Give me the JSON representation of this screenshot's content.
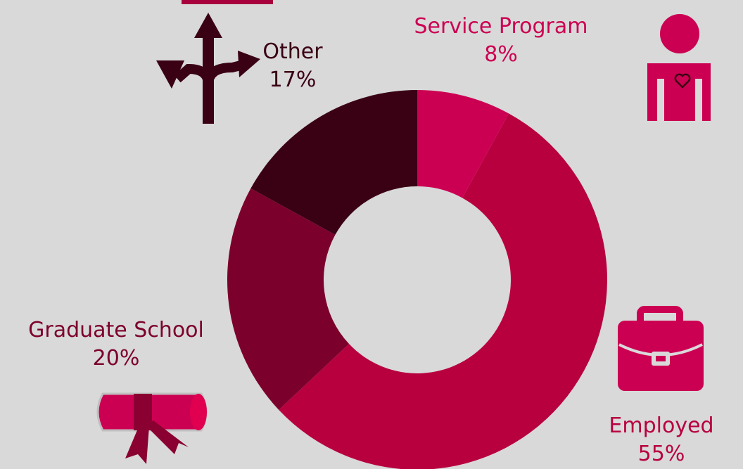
{
  "chart_data": {
    "type": "pie",
    "donut": true,
    "categories": [
      "Service Program",
      "Employed",
      "Graduate School",
      "Other"
    ],
    "values": [
      8,
      55,
      20,
      17
    ],
    "value_labels": [
      "8%",
      "55%",
      "20%",
      "17%"
    ],
    "colors": [
      "#cc0052",
      "#b8003f",
      "#7c002c",
      "#3a0014"
    ],
    "start_angle_deg": 0,
    "direction": "clockwise",
    "legend": "none"
  },
  "labels": {
    "service": {
      "name": "Service Program",
      "value": "8%"
    },
    "employed": {
      "name": "Employed",
      "value": "55%"
    },
    "grad": {
      "name": "Graduate School",
      "value": "20%"
    },
    "other": {
      "name": "Other",
      "value": "17%"
    }
  },
  "icons": {
    "service": "person-heart-icon",
    "employed": "briefcase-icon",
    "grad": "diploma-scroll-icon",
    "other": "crossroads-arrows-icon"
  }
}
